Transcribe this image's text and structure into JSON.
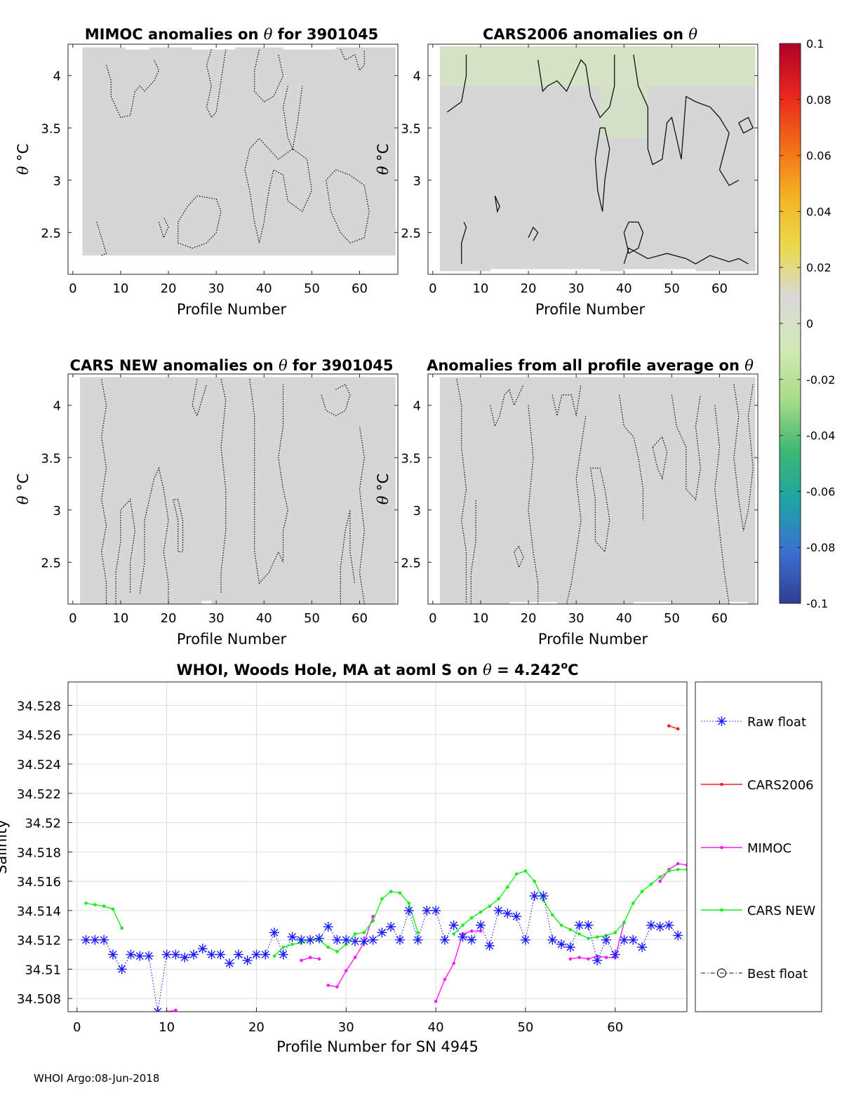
{
  "footer": "WHOI Argo:08-Jun-2018",
  "colors": {
    "background_field": "#d6d6d6",
    "raw_float": "#1a1aff",
    "cars2006": "#ff1a1a",
    "mimoc": "#ff1aff",
    "cars_new": "#1aee1a",
    "grid": "#dedede"
  },
  "colorbar": {
    "min": -0.1,
    "max": 0.1,
    "tick_labels": [
      "0.1",
      "0.08",
      "0.06",
      "0.04",
      "0.02",
      "0",
      "-0.02",
      "-0.04",
      "-0.06",
      "-0.08",
      "-0.1"
    ],
    "stops": [
      "#b00026",
      "#e8251f",
      "#f36c16",
      "#f4b223",
      "#ead94a",
      "#d9d9d9",
      "#d2eab6",
      "#a8dc86",
      "#3db872",
      "#1ea3a6",
      "#3d6fd0",
      "#2f3f8f"
    ]
  },
  "anomaly_panels": [
    {
      "title_parts": [
        "MIMOC anomalies on ",
        "θ",
        "  for 3901045"
      ],
      "xlabel": "Profile Number",
      "ylabel_sym": "θ",
      "ylabel_unit": "°C",
      "xticks": [
        "0",
        "10",
        "20",
        "30",
        "40",
        "50",
        "60"
      ],
      "yticks": [
        "4",
        "3.5",
        "3",
        "2.5"
      ],
      "xlim": [
        -1,
        68
      ],
      "ylim": [
        2.1,
        4.3
      ]
    },
    {
      "title_parts": [
        "CARS2006 anomalies on ",
        "θ",
        ""
      ],
      "xlabel": "Profile Number",
      "ylabel_sym": "θ",
      "ylabel_unit": "°C",
      "xticks": [
        "0",
        "10",
        "20",
        "30",
        "40",
        "50",
        "60"
      ],
      "yticks": [
        "4",
        "3.5",
        "3",
        "2.5"
      ],
      "xlim": [
        -1,
        68
      ],
      "ylim": [
        2.1,
        4.3
      ]
    },
    {
      "title_parts": [
        "CARS NEW anomalies on ",
        "θ",
        " for 3901045"
      ],
      "xlabel": "Profile Number",
      "ylabel_sym": "θ",
      "ylabel_unit": "°C",
      "xticks": [
        "0",
        "10",
        "20",
        "30",
        "40",
        "50",
        "60"
      ],
      "yticks": [
        "4",
        "3.5",
        "3",
        "2.5"
      ],
      "xlim": [
        -1,
        68
      ],
      "ylim": [
        2.1,
        4.3
      ]
    },
    {
      "title_parts": [
        "Anomalies from all profile average on ",
        "θ",
        ""
      ],
      "xlabel": "Profile Number",
      "ylabel_sym": "θ",
      "ylabel_unit": "°C",
      "xticks": [
        "0",
        "10",
        "20",
        "30",
        "40",
        "50",
        "60"
      ],
      "yticks": [
        "4",
        "3.5",
        "3",
        "2.5"
      ],
      "xlim": [
        -1,
        68
      ],
      "ylim": [
        2.1,
        4.3
      ]
    }
  ],
  "chart_data": {
    "type": "line",
    "title_parts": [
      "WHOI, Woods Hole, MA at aoml S on ",
      "θ",
      " = 4.242",
      "o",
      "C"
    ],
    "xlabel": "Profile Number for SN 4945",
    "ylabel": "Salinity",
    "xlim": [
      -1,
      68
    ],
    "ylim": [
      34.5071,
      34.5296
    ],
    "grid": true,
    "xticks": [
      "0",
      "10",
      "20",
      "30",
      "40",
      "50",
      "60"
    ],
    "yticks": [
      "34.528",
      "34.526",
      "34.524",
      "34.522",
      "34.52",
      "34.518",
      "34.516",
      "34.514",
      "34.512",
      "34.51",
      "34.508"
    ],
    "legend": [
      "Raw float",
      "CARS2006",
      "MIMOC",
      "CARS NEW",
      "Best float"
    ],
    "legend_position": "outside-right",
    "series": [
      {
        "name": "Raw float",
        "style": "dotted-star",
        "points": [
          [
            1,
            34.512
          ],
          [
            2,
            34.512
          ],
          [
            3,
            34.512
          ],
          [
            4,
            34.511
          ],
          [
            5,
            34.51
          ],
          [
            6,
            34.511
          ],
          [
            7,
            34.5109
          ],
          [
            8,
            34.5109
          ],
          [
            9,
            34.5071
          ],
          [
            10,
            34.511
          ],
          [
            11,
            34.511
          ],
          [
            12,
            34.5108
          ],
          [
            13,
            34.511
          ],
          [
            14,
            34.5114
          ],
          [
            15,
            34.511
          ],
          [
            16,
            34.511
          ],
          [
            17,
            34.5104
          ],
          [
            18,
            34.511
          ],
          [
            19,
            34.5106
          ],
          [
            20,
            34.511
          ],
          [
            21,
            34.511
          ],
          [
            22,
            34.5125
          ],
          [
            23,
            34.511
          ],
          [
            24,
            34.5122
          ],
          [
            25,
            34.512
          ],
          [
            26,
            34.512
          ],
          [
            27,
            34.5121
          ],
          [
            28,
            34.5129
          ],
          [
            29,
            34.512
          ],
          [
            30,
            34.512
          ],
          [
            31,
            34.5119
          ],
          [
            32,
            34.5119
          ],
          [
            33,
            34.512
          ],
          [
            34,
            34.5125
          ],
          [
            35,
            34.5129
          ],
          [
            36,
            34.512
          ],
          [
            37,
            34.514
          ],
          [
            38,
            34.512
          ],
          [
            39,
            34.514
          ],
          [
            40,
            34.514
          ],
          [
            41,
            34.512
          ],
          [
            42,
            34.513
          ],
          [
            43,
            34.5122
          ],
          [
            44,
            34.512
          ],
          [
            45,
            34.513
          ],
          [
            46,
            34.5116
          ],
          [
            47,
            34.514
          ],
          [
            48,
            34.5138
          ],
          [
            49,
            34.5136
          ],
          [
            50,
            34.512
          ],
          [
            51,
            34.515
          ],
          [
            52,
            34.515
          ],
          [
            53,
            34.512
          ],
          [
            54,
            34.5117
          ],
          [
            55,
            34.5115
          ],
          [
            56,
            34.513
          ],
          [
            57,
            34.513
          ],
          [
            58,
            34.5106
          ],
          [
            59,
            34.512
          ],
          [
            60,
            34.511
          ],
          [
            61,
            34.512
          ],
          [
            62,
            34.512
          ],
          [
            63,
            34.5115
          ],
          [
            64,
            34.513
          ],
          [
            65,
            34.5129
          ],
          [
            66,
            34.513
          ],
          [
            67,
            34.5123
          ]
        ]
      },
      {
        "name": "CARS2006",
        "style": "solid-dot",
        "segments": [
          [
            [
              66,
              34.5266
            ],
            [
              67,
              34.5264
            ]
          ]
        ]
      },
      {
        "name": "MIMOC",
        "style": "solid-dot",
        "segments": [
          [
            [
              10,
              34.5071
            ],
            [
              11,
              34.5072
            ]
          ],
          [
            [
              25,
              34.5106
            ],
            [
              26,
              34.5108
            ],
            [
              27,
              34.5107
            ]
          ],
          [
            [
              28,
              34.5089
            ],
            [
              29,
              34.5088
            ],
            [
              30,
              34.5099
            ],
            [
              31,
              34.5108
            ],
            [
              32,
              34.5118
            ],
            [
              33,
              34.5136
            ]
          ],
          [
            [
              40,
              34.5078
            ],
            [
              41,
              34.5093
            ],
            [
              42,
              34.5104
            ],
            [
              43,
              34.5124
            ],
            [
              44,
              34.5126
            ],
            [
              45,
              34.5126
            ]
          ],
          [
            [
              55,
              34.5107
            ],
            [
              56,
              34.5108
            ],
            [
              57,
              34.5107
            ],
            [
              58,
              34.5109
            ],
            [
              59,
              34.5108
            ],
            [
              60,
              34.5108
            ],
            [
              61,
              34.5132
            ]
          ],
          [
            [
              65,
              34.516
            ],
            [
              66,
              34.5168
            ],
            [
              67,
              34.5172
            ],
            [
              68,
              34.5171
            ]
          ]
        ]
      },
      {
        "name": "CARS NEW",
        "style": "solid-dot",
        "segments": [
          [
            [
              1,
              34.5145
            ],
            [
              2,
              34.5144
            ],
            [
              3,
              34.5143
            ],
            [
              4,
              34.5141
            ],
            [
              5,
              34.5128
            ]
          ],
          [
            [
              22,
              34.5109
            ],
            [
              23,
              34.5115
            ],
            [
              24,
              34.5117
            ],
            [
              25,
              34.5118
            ],
            [
              26,
              34.512
            ],
            [
              27,
              34.512
            ],
            [
              28,
              34.5115
            ],
            [
              29,
              34.5112
            ],
            [
              30,
              34.5117
            ],
            [
              31,
              34.5124
            ],
            [
              32,
              34.5125
            ],
            [
              33,
              34.5133
            ],
            [
              34,
              34.5148
            ],
            [
              35,
              34.5153
            ],
            [
              36,
              34.5152
            ],
            [
              37,
              34.5145
            ],
            [
              38,
              34.5125
            ]
          ],
          [
            [
              42,
              34.5124
            ],
            [
              43,
              34.513
            ],
            [
              44,
              34.5135
            ],
            [
              45,
              34.5139
            ],
            [
              46,
              34.5143
            ],
            [
              47,
              34.5148
            ],
            [
              48,
              34.5156
            ],
            [
              49,
              34.5165
            ],
            [
              50,
              34.5167
            ],
            [
              51,
              34.516
            ],
            [
              52,
              34.5147
            ],
            [
              53,
              34.5137
            ],
            [
              54,
              34.513
            ],
            [
              55,
              34.5127
            ],
            [
              56,
              34.5124
            ],
            [
              57,
              34.5121
            ],
            [
              58,
              34.5122
            ],
            [
              59,
              34.5123
            ],
            [
              60,
              34.5125
            ],
            [
              61,
              34.5132
            ],
            [
              62,
              34.5145
            ],
            [
              63,
              34.5153
            ],
            [
              64,
              34.5158
            ],
            [
              65,
              34.5163
            ],
            [
              66,
              34.5167
            ],
            [
              67,
              34.5168
            ],
            [
              68,
              34.5168
            ]
          ]
        ]
      }
    ]
  }
}
